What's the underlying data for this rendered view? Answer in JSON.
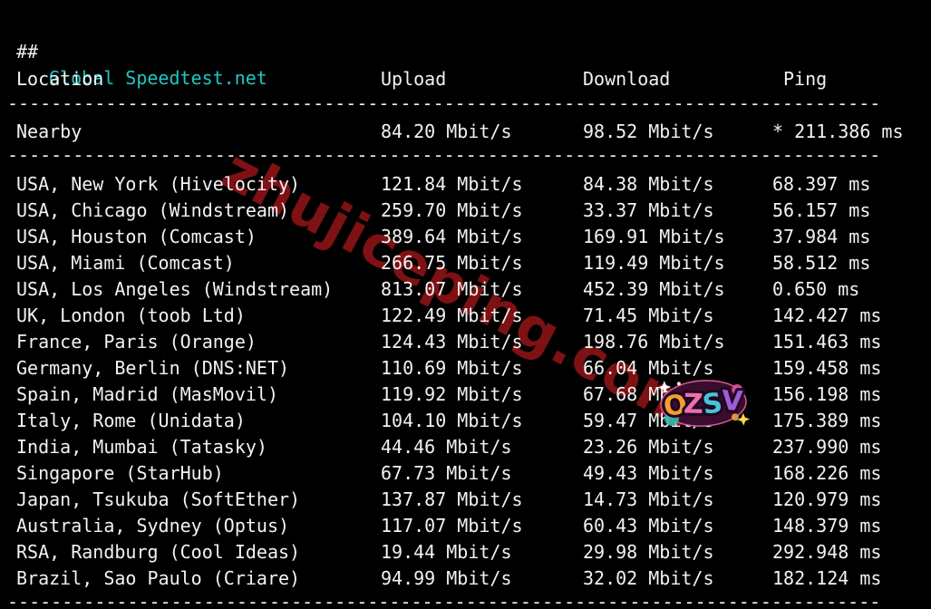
{
  "title": {
    "prefix": "##",
    "text": "Global Speedtest.net"
  },
  "colors": {
    "background": "#000000",
    "text": "#f2f2f2",
    "title_accent": "#1fc7c5",
    "watermark": "#7d1113"
  },
  "table": {
    "headers": {
      "location": "Location",
      "upload": "Upload",
      "download": "Download",
      "ping": "Ping"
    },
    "separator": "--------------------------------------------------------------------------------",
    "nearby": {
      "location": "Nearby",
      "upload": "84.20 Mbit/s",
      "download": "98.52 Mbit/s",
      "ping": "* 211.386 ms"
    },
    "rows": [
      {
        "location": "USA, New York (Hivelocity)",
        "upload": "121.84 Mbit/s",
        "download": "84.38 Mbit/s",
        "ping": "68.397 ms"
      },
      {
        "location": "USA, Chicago (Windstream)",
        "upload": "259.70 Mbit/s",
        "download": "33.37 Mbit/s",
        "ping": "56.157 ms"
      },
      {
        "location": "USA, Houston (Comcast)",
        "upload": "389.64 Mbit/s",
        "download": "169.91 Mbit/s",
        "ping": "37.984 ms"
      },
      {
        "location": "USA, Miami (Comcast)",
        "upload": "266.75 Mbit/s",
        "download": "119.49 Mbit/s",
        "ping": "58.512 ms"
      },
      {
        "location": "USA, Los Angeles (Windstream)",
        "upload": "813.07 Mbit/s",
        "download": "452.39 Mbit/s",
        "ping": "0.650 ms"
      },
      {
        "location": "UK, London (toob Ltd)",
        "upload": "122.49 Mbit/s",
        "download": "71.45 Mbit/s",
        "ping": "142.427 ms"
      },
      {
        "location": "France, Paris (Orange)",
        "upload": "124.43 Mbit/s",
        "download": "198.76 Mbit/s",
        "ping": "151.463 ms"
      },
      {
        "location": "Germany, Berlin (DNS:NET)",
        "upload": "110.69 Mbit/s",
        "download": "66.04 Mbit/s",
        "ping": "159.458 ms"
      },
      {
        "location": "Spain, Madrid (MasMovil)",
        "upload": "119.92 Mbit/s",
        "download": "67.68 Mbit/s",
        "ping": "156.198 ms"
      },
      {
        "location": "Italy, Rome (Unidata)",
        "upload": "104.10 Mbit/s",
        "download": "59.47 Mbit/s",
        "ping": "175.389 ms"
      },
      {
        "location": "India, Mumbai (Tatasky)",
        "upload": "44.46 Mbit/s",
        "download": "23.26 Mbit/s",
        "ping": "237.990 ms"
      },
      {
        "location": "Singapore (StarHub)",
        "upload": "67.73 Mbit/s",
        "download": "49.43 Mbit/s",
        "ping": "168.226 ms"
      },
      {
        "location": "Japan, Tsukuba (SoftEther)",
        "upload": "137.87 Mbit/s",
        "download": "14.73 Mbit/s",
        "ping": "120.979 ms"
      },
      {
        "location": "Australia, Sydney (Optus)",
        "upload": "117.07 Mbit/s",
        "download": "60.43 Mbit/s",
        "ping": "148.379 ms"
      },
      {
        "location": "RSA, Randburg (Cool Ideas)",
        "upload": "19.44 Mbit/s",
        "download": "29.98 Mbit/s",
        "ping": "292.948 ms"
      },
      {
        "location": "Brazil, Sao Paulo (Criare)",
        "upload": "94.99 Mbit/s",
        "download": "32.02 Mbit/s",
        "ping": "182.124 ms"
      }
    ]
  },
  "watermark": {
    "text": "zhujiceping.com"
  },
  "sticker": {
    "text": "OZSV",
    "letters": [
      "O",
      "Z",
      "S",
      "V"
    ]
  }
}
